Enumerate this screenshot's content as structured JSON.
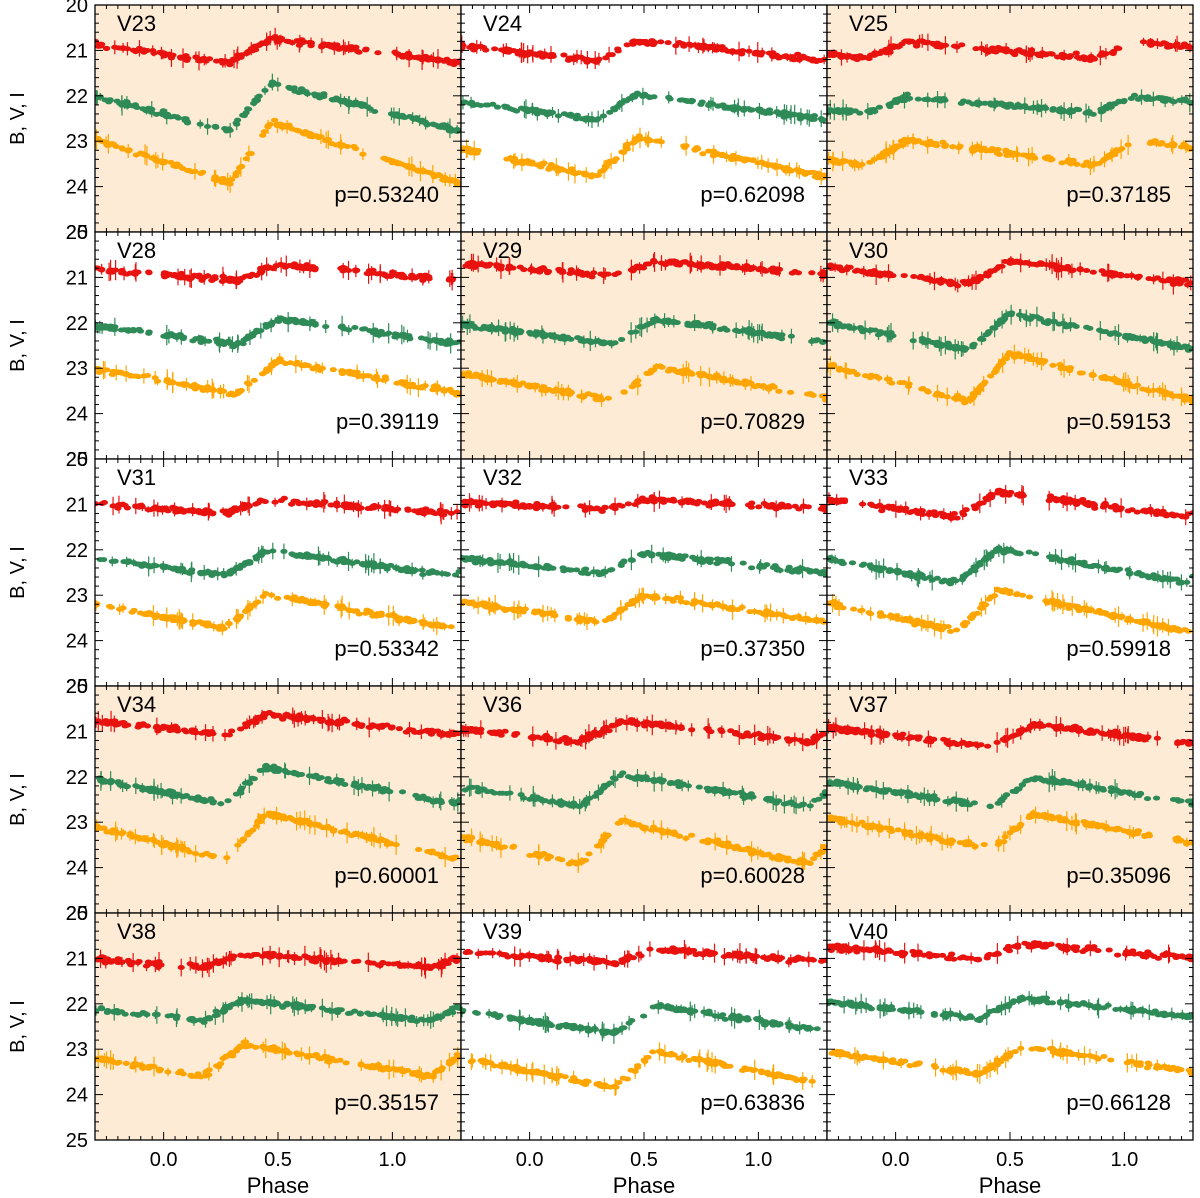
{
  "chart_data": {
    "type": "scatter",
    "title": "",
    "xlabel": "Phase",
    "ylabel": "B, V, I",
    "xlim": [
      -0.3,
      1.3
    ],
    "ylim": [
      20,
      25
    ],
    "y_inverted": true,
    "x_ticks": [
      "0.0",
      "0.5",
      "1.0"
    ],
    "x_tick_values": [
      0.0,
      0.5,
      1.0
    ],
    "y_ticks": [
      "20",
      "21",
      "22",
      "23",
      "24",
      "25"
    ],
    "y_tick_values": [
      20,
      21,
      22,
      23,
      24,
      25
    ],
    "band_colors": {
      "I": "#e8120f",
      "V": "#2e8b57",
      "B": "#ffa500"
    },
    "band_order": [
      "I",
      "V",
      "B"
    ],
    "panels": [
      {
        "name": "V23",
        "period_label": "p=0.53240",
        "shaded": true,
        "mean": {
          "I": 21.0,
          "V": 22.25,
          "B": 23.25
        },
        "amp": {
          "I": 0.55,
          "V": 1.05,
          "B": 1.35
        },
        "phi_max": 0.47
      },
      {
        "name": "V24",
        "period_label": "p=0.62098",
        "shaded": false,
        "mean": {
          "I": 21.0,
          "V": 22.25,
          "B": 23.35
        },
        "amp": {
          "I": 0.45,
          "V": 0.55,
          "B": 0.85
        },
        "phi_max": 0.47
      },
      {
        "name": "V25",
        "period_label": "p=0.37185",
        "shaded": true,
        "mean": {
          "I": 21.0,
          "V": 22.2,
          "B": 23.25
        },
        "amp": {
          "I": 0.35,
          "V": 0.35,
          "B": 0.55
        },
        "phi_max": 0.05
      },
      {
        "name": "V28",
        "period_label": "p=0.39119",
        "shaded": false,
        "mean": {
          "I": 20.9,
          "V": 22.2,
          "B": 23.2
        },
        "amp": {
          "I": 0.35,
          "V": 0.55,
          "B": 0.75
        },
        "phi_max": 0.5
      },
      {
        "name": "V29",
        "period_label": "p=0.70829",
        "shaded": true,
        "mean": {
          "I": 20.8,
          "V": 22.2,
          "B": 23.35
        },
        "amp": {
          "I": 0.3,
          "V": 0.55,
          "B": 0.75
        },
        "phi_max": 0.55
      },
      {
        "name": "V30",
        "period_label": "p=0.59153",
        "shaded": true,
        "mean": {
          "I": 20.9,
          "V": 22.2,
          "B": 23.2
        },
        "amp": {
          "I": 0.5,
          "V": 0.8,
          "B": 1.05
        },
        "phi_max": 0.5
      },
      {
        "name": "V31",
        "period_label": "p=0.53342",
        "shaded": false,
        "mean": {
          "I": 21.05,
          "V": 22.3,
          "B": 23.35
        },
        "amp": {
          "I": 0.3,
          "V": 0.55,
          "B": 0.75
        },
        "phi_max": 0.45
      },
      {
        "name": "V32",
        "period_label": "p=0.37350",
        "shaded": false,
        "mean": {
          "I": 21.0,
          "V": 22.3,
          "B": 23.3
        },
        "amp": {
          "I": 0.2,
          "V": 0.45,
          "B": 0.6
        },
        "phi_max": 0.5
      },
      {
        "name": "V33",
        "period_label": "p=0.59918",
        "shaded": false,
        "mean": {
          "I": 21.0,
          "V": 22.35,
          "B": 23.35
        },
        "amp": {
          "I": 0.55,
          "V": 0.75,
          "B": 0.9
        },
        "phi_max": 0.45
      },
      {
        "name": "V34",
        "period_label": "p=0.60001",
        "shaded": true,
        "mean": {
          "I": 20.85,
          "V": 22.2,
          "B": 23.3
        },
        "amp": {
          "I": 0.45,
          "V": 0.8,
          "B": 1.0
        },
        "phi_max": 0.45
      },
      {
        "name": "V36",
        "period_label": "p=0.60028",
        "shaded": true,
        "mean": {
          "I": 21.0,
          "V": 22.3,
          "B": 23.45
        },
        "amp": {
          "I": 0.45,
          "V": 0.7,
          "B": 0.95
        },
        "phi_max": 0.4
      },
      {
        "name": "V37",
        "period_label": "p=0.35096",
        "shaded": true,
        "mean": {
          "I": 21.1,
          "V": 22.35,
          "B": 23.2
        },
        "amp": {
          "I": 0.5,
          "V": 0.65,
          "B": 0.75
        },
        "phi_max": 0.6
      },
      {
        "name": "V38",
        "period_label": "p=0.35157",
        "shaded": true,
        "mean": {
          "I": 21.05,
          "V": 22.15,
          "B": 23.25
        },
        "amp": {
          "I": 0.3,
          "V": 0.45,
          "B": 0.7
        },
        "phi_max": 0.35
      },
      {
        "name": "V39",
        "period_label": "p=0.63836",
        "shaded": false,
        "mean": {
          "I": 20.95,
          "V": 22.35,
          "B": 23.45
        },
        "amp": {
          "I": 0.3,
          "V": 0.6,
          "B": 0.8
        },
        "phi_max": 0.55
      },
      {
        "name": "V40",
        "period_label": "p=0.66128",
        "shaded": false,
        "mean": {
          "I": 20.85,
          "V": 22.1,
          "B": 23.25
        },
        "amp": {
          "I": 0.35,
          "V": 0.45,
          "B": 0.6
        },
        "phi_max": 0.55
      }
    ]
  }
}
